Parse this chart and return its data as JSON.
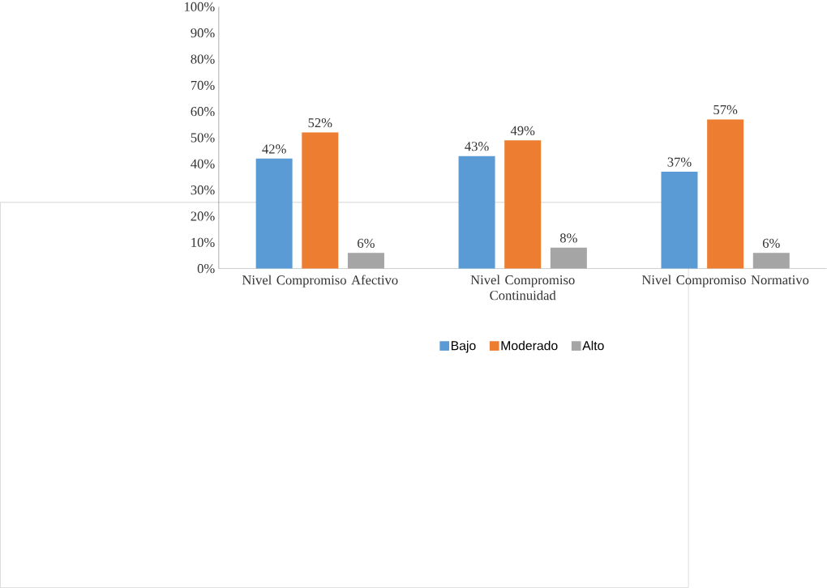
{
  "chart_data": {
    "type": "bar",
    "categories": [
      "Nivel Compromiso Afectivo",
      "Nivel Compromiso Continuidad",
      "Nivel Compromiso Normativo"
    ],
    "series": [
      {
        "name": "Bajo",
        "color": "#5b9bd5",
        "values": [
          42,
          43,
          37
        ],
        "value_labels": [
          "42%",
          "43%",
          "37%"
        ]
      },
      {
        "name": "Moderado",
        "color": "#ed7d31",
        "values": [
          52,
          49,
          57
        ],
        "value_labels": [
          "52%",
          "49%",
          "57%"
        ]
      },
      {
        "name": "Alto",
        "color": "#a5a5a5",
        "values": [
          6,
          8,
          6
        ],
        "value_labels": [
          "6%",
          "8%",
          "6%"
        ]
      }
    ],
    "ylim": [
      0,
      100
    ],
    "yticks": [
      {
        "value": 0,
        "label": "0%"
      },
      {
        "value": 10,
        "label": "10%"
      },
      {
        "value": 20,
        "label": "20%"
      },
      {
        "value": 30,
        "label": "30%"
      },
      {
        "value": 40,
        "label": "40%"
      },
      {
        "value": 50,
        "label": "50%"
      },
      {
        "value": 60,
        "label": "60%"
      },
      {
        "value": 70,
        "label": "70%"
      },
      {
        "value": 80,
        "label": "80%"
      },
      {
        "value": 90,
        "label": "90%"
      },
      {
        "value": 100,
        "label": "100%"
      }
    ],
    "legend": "bottom"
  }
}
